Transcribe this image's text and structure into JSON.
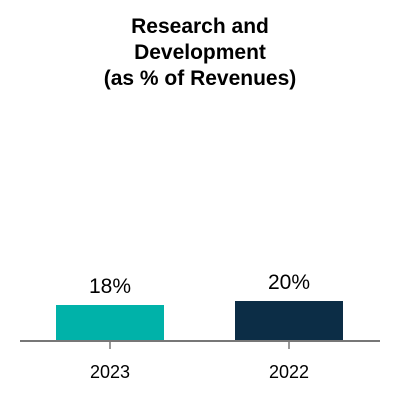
{
  "chart_data": {
    "type": "bar",
    "title_lines": [
      "Research and",
      "Development",
      "(as % of Revenues)"
    ],
    "categories": [
      "2023",
      "2022"
    ],
    "values": [
      18,
      20
    ],
    "data_labels": [
      "18%",
      "20%"
    ],
    "colors": [
      "#00B2A9",
      "#0C2D46"
    ],
    "axis_color": "#777777",
    "ylim": [
      0,
      100
    ],
    "grid": false,
    "legend": "none"
  }
}
